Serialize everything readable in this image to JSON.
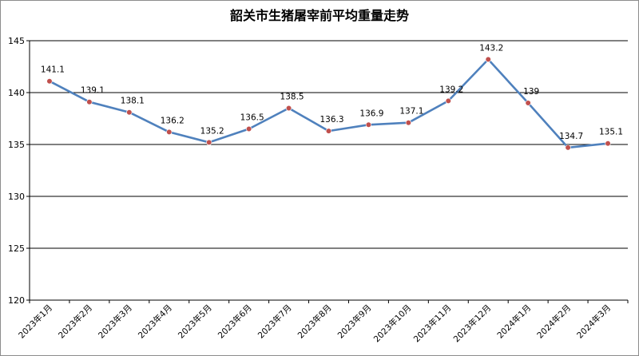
{
  "chart_data": {
    "type": "line",
    "title": "韶关市生猪屠宰前平均重量走势",
    "xlabel": "",
    "ylabel": "",
    "categories": [
      "2023年1月",
      "2023年2月",
      "2023年3月",
      "2023年4月",
      "2023年5月",
      "2023年6月",
      "2023年7月",
      "2023年8月",
      "2023年9月",
      "2023年10月",
      "2023年11月",
      "2023年12月",
      "2024年1月",
      "2024年2月",
      "2024年3月"
    ],
    "series": [
      {
        "values": [
          141.1,
          139.1,
          138.1,
          136.2,
          135.2,
          136.5,
          138.5,
          136.3,
          136.9,
          137.1,
          139.2,
          143.2,
          139,
          134.7,
          135.1
        ],
        "data_labels": [
          "141.1",
          "139.1",
          "138.1",
          "136.2",
          "135.2",
          "136.5",
          "138.5",
          "136.3",
          "136.9",
          "137.1",
          "139.2",
          "143.2",
          "139",
          "134.7",
          "135.1"
        ],
        "line_color": "#4f81bd",
        "marker_color": "#c0504d"
      }
    ],
    "ylim": [
      120,
      145
    ],
    "yticks": [
      120,
      125,
      130,
      135,
      140,
      145
    ],
    "grid": true,
    "legend": "none"
  }
}
